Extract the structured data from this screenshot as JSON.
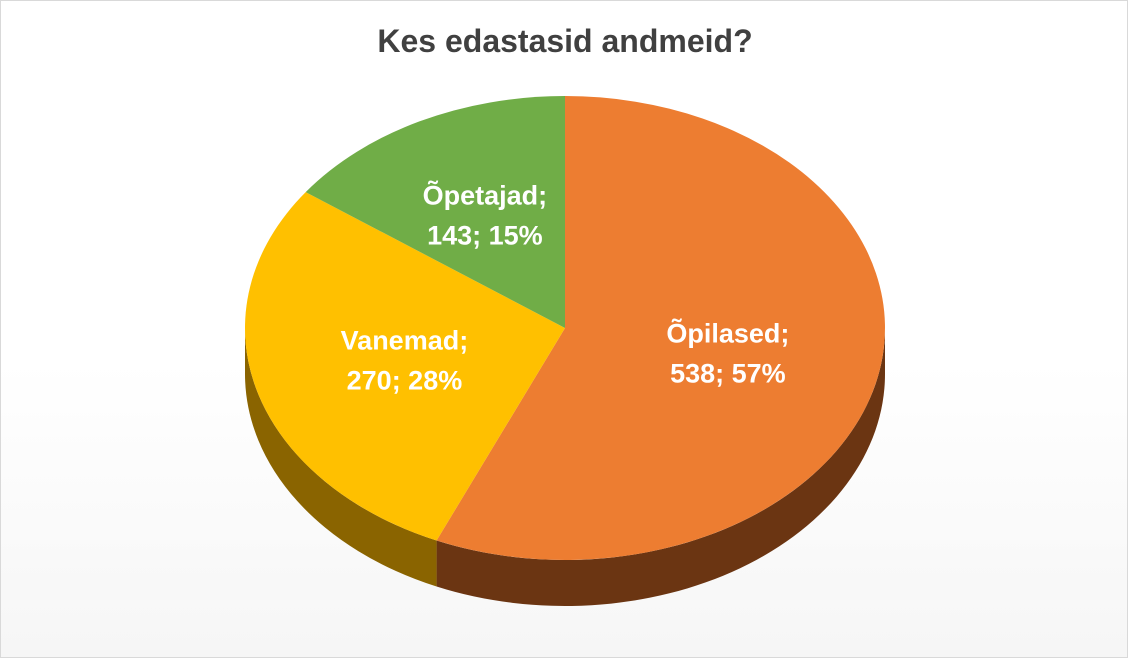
{
  "chart_data": {
    "type": "pie",
    "title": "Kes edastasid andmeid?",
    "slices": [
      {
        "name": "Õpilased",
        "value": 538,
        "percent": "57%",
        "label_line1": "Õpilased;",
        "label_line2": "538; 57%",
        "color": "#ed7d31",
        "side_color": "#6b3512"
      },
      {
        "name": "Vanemad",
        "value": 270,
        "percent": "28%",
        "label_line1": "Vanemad;",
        "label_line2": "270; 28%",
        "color": "#ffc000",
        "side_color": "#8a6400"
      },
      {
        "name": "Õpetajad",
        "value": 143,
        "percent": "15%",
        "label_line1": "Õpetajad;",
        "label_line2": "143; 15%",
        "color": "#70ad47",
        "side_color": "#3e6a23"
      }
    ]
  }
}
